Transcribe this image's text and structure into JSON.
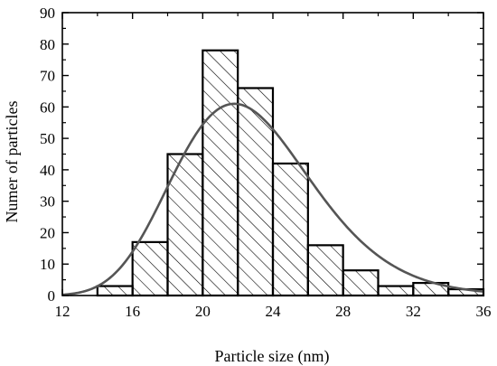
{
  "chart_data": {
    "type": "bar",
    "subtype": "histogram-with-fit",
    "xlabel": "Particle size (nm)",
    "ylabel": "Numer of particles",
    "xlim": [
      12,
      36
    ],
    "ylim": [
      0,
      90
    ],
    "xticks": [
      12,
      16,
      20,
      24,
      28,
      32,
      36
    ],
    "yticks": [
      0,
      10,
      20,
      30,
      40,
      50,
      60,
      70,
      80,
      90
    ],
    "bins": [
      {
        "start": 14,
        "end": 16,
        "value": 3
      },
      {
        "start": 16,
        "end": 18,
        "value": 17
      },
      {
        "start": 18,
        "end": 20,
        "value": 45
      },
      {
        "start": 20,
        "end": 22,
        "value": 78
      },
      {
        "start": 22,
        "end": 24,
        "value": 66
      },
      {
        "start": 24,
        "end": 26,
        "value": 42
      },
      {
        "start": 26,
        "end": 28,
        "value": 16
      },
      {
        "start": 28,
        "end": 30,
        "value": 8
      },
      {
        "start": 30,
        "end": 32,
        "value": 3
      },
      {
        "start": 32,
        "end": 34,
        "value": 4
      },
      {
        "start": 34,
        "end": 36,
        "value": 2
      }
    ],
    "fit": {
      "type": "lognormal",
      "peak_x": 21.8,
      "peak_y": 61,
      "color": "#555555"
    },
    "bar_fill": "hatched",
    "grid": false,
    "legend": "none"
  }
}
